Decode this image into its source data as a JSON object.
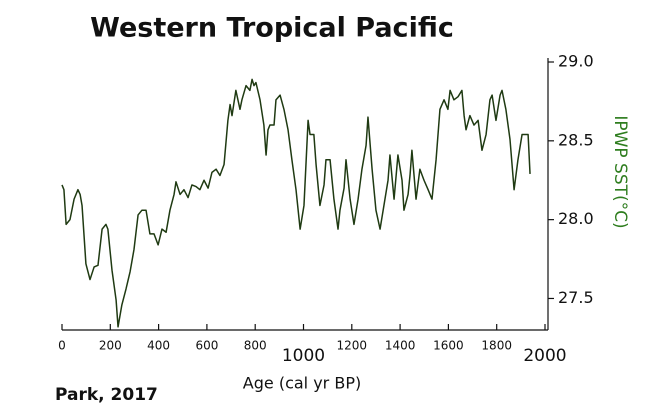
{
  "chart_data": {
    "type": "line",
    "title": "Western Tropical Pacific",
    "xlabel": "Age (cal yr BP)",
    "ylabel": "IPWP SST(°C)",
    "source": "Park, 2017",
    "xlim": [
      0,
      2000
    ],
    "ylim": [
      27.3,
      29.0
    ],
    "xticks": [
      0,
      200,
      400,
      600,
      800,
      1000,
      1200,
      1400,
      1600,
      1800,
      2000
    ],
    "yticks": [
      {
        "value": 27.5,
        "label": "27.5"
      },
      {
        "value": 28.0,
        "label": "28.0"
      },
      {
        "value": 28.5,
        "label": "28.5"
      },
      {
        "value": 29.0,
        "label": "29.0"
      }
    ],
    "yaxis_side": "right",
    "series": [
      {
        "name": "IPWP SST",
        "color": "#1f3a12",
        "label_color": "#2e7d1e",
        "x": [
          0,
          8,
          17,
          33,
          50,
          66,
          75,
          83,
          99,
          116,
          133,
          149,
          166,
          182,
          190,
          207,
          224,
          232,
          248,
          265,
          282,
          298,
          315,
          331,
          348,
          364,
          381,
          398,
          414,
          431,
          447,
          464,
          472,
          489,
          505,
          522,
          538,
          555,
          571,
          588,
          605,
          621,
          638,
          654,
          671,
          687,
          696,
          704,
          720,
          737,
          745,
          762,
          778,
          787,
          795,
          803,
          820,
          836,
          845,
          853,
          861,
          878,
          886,
          903,
          919,
          936,
          952,
          969,
          986,
          1002,
          1019,
          1027,
          1043,
          1052,
          1068,
          1085,
          1093,
          1110,
          1126,
          1143,
          1151,
          1168,
          1176,
          1193,
          1209,
          1226,
          1242,
          1259,
          1267,
          1284,
          1300,
          1317,
          1333,
          1350,
          1358,
          1375,
          1391,
          1408,
          1416,
          1433,
          1441,
          1449,
          1466,
          1482,
          1499,
          1516,
          1532,
          1549,
          1565,
          1582,
          1598,
          1607,
          1623,
          1640,
          1656,
          1665,
          1673,
          1689,
          1706,
          1723,
          1739,
          1756,
          1772,
          1781,
          1797,
          1814,
          1822,
          1838,
          1855,
          1872,
          1888,
          1905,
          1921,
          1930,
          1938
        ],
        "values": [
          28.22,
          28.19,
          27.97,
          28.0,
          28.13,
          28.19,
          28.16,
          28.09,
          27.72,
          27.62,
          27.7,
          27.71,
          27.94,
          27.97,
          27.94,
          27.68,
          27.49,
          27.32,
          27.46,
          27.56,
          27.67,
          27.81,
          28.03,
          28.06,
          28.06,
          27.91,
          27.91,
          27.84,
          27.94,
          27.92,
          28.06,
          28.16,
          28.24,
          28.16,
          28.19,
          28.14,
          28.22,
          28.21,
          28.19,
          28.25,
          28.2,
          28.3,
          28.32,
          28.28,
          28.35,
          28.63,
          28.73,
          28.66,
          28.82,
          28.7,
          28.76,
          28.85,
          28.82,
          28.89,
          28.85,
          28.87,
          28.76,
          28.6,
          28.41,
          28.57,
          28.6,
          28.6,
          28.76,
          28.79,
          28.7,
          28.57,
          28.38,
          28.19,
          27.94,
          28.09,
          28.63,
          28.54,
          28.54,
          28.35,
          28.09,
          28.22,
          28.38,
          28.38,
          28.13,
          27.94,
          28.06,
          28.2,
          28.38,
          28.13,
          27.97,
          28.13,
          28.32,
          28.47,
          28.65,
          28.32,
          28.06,
          27.94,
          28.09,
          28.25,
          28.41,
          28.13,
          28.41,
          28.25,
          28.06,
          28.16,
          28.28,
          28.44,
          28.13,
          28.32,
          28.25,
          28.19,
          28.13,
          28.38,
          28.7,
          28.76,
          28.7,
          28.82,
          28.76,
          28.78,
          28.82,
          28.66,
          28.57,
          28.66,
          28.6,
          28.63,
          28.44,
          28.54,
          28.76,
          28.79,
          28.63,
          28.79,
          28.82,
          28.7,
          28.51,
          28.19,
          28.38,
          28.54,
          28.54,
          28.54,
          28.29
        ]
      }
    ]
  }
}
